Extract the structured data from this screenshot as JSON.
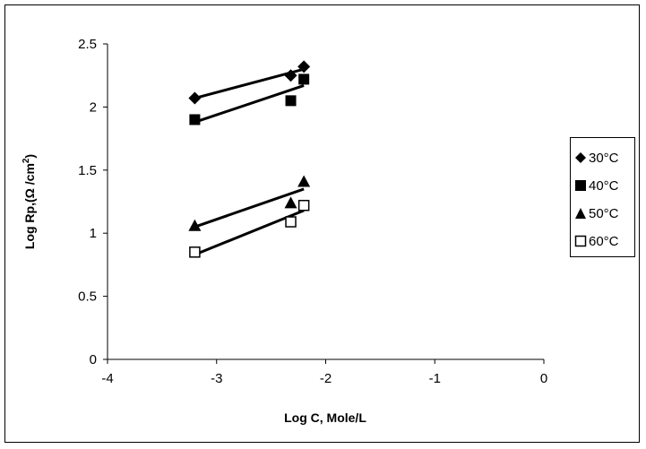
{
  "chart_data": {
    "type": "scatter",
    "title": "",
    "xlabel": "Log C, Mole/L",
    "ylabel_main": "Log Rp,(Ω /cm",
    "ylabel_sup": "2",
    "ylabel_end": ")",
    "xlim": [
      -4,
      0
    ],
    "ylim": [
      0,
      2.5
    ],
    "x_ticks": [
      -4,
      -3,
      -2,
      -1,
      0
    ],
    "x_tick_labels": [
      "-4",
      "-3",
      "-2",
      "-1",
      "0"
    ],
    "y_ticks": [
      0,
      0.5,
      1,
      1.5,
      2,
      2.5
    ],
    "y_tick_labels": [
      "0",
      "0.5",
      "1",
      "1.5",
      "2",
      "2.5"
    ],
    "grid": false,
    "legend_position": "right",
    "series": [
      {
        "name": "30°C",
        "marker": "diamond",
        "color": "#000000",
        "x": [
          -3.2,
          -2.32,
          -2.2
        ],
        "y": [
          2.07,
          2.25,
          2.32
        ],
        "trendline": [
          [
            -3.2,
            2.07
          ],
          [
            -2.2,
            2.3
          ]
        ]
      },
      {
        "name": "40°C",
        "marker": "square-filled",
        "color": "#000000",
        "x": [
          -3.2,
          -2.32,
          -2.2
        ],
        "y": [
          1.9,
          2.05,
          2.22
        ],
        "trendline": [
          [
            -3.2,
            1.88
          ],
          [
            -2.2,
            2.17
          ]
        ]
      },
      {
        "name": "50°C",
        "marker": "triangle",
        "color": "#000000",
        "x": [
          -3.2,
          -2.32,
          -2.2
        ],
        "y": [
          1.06,
          1.24,
          1.41
        ],
        "trendline": [
          [
            -3.2,
            1.05
          ],
          [
            -2.2,
            1.35
          ]
        ]
      },
      {
        "name": "60°C",
        "marker": "square-open",
        "color": "#000000",
        "x": [
          -3.2,
          -2.32,
          -2.2
        ],
        "y": [
          0.85,
          1.09,
          1.22
        ],
        "trendline": [
          [
            -3.2,
            0.83
          ],
          [
            -2.2,
            1.18
          ]
        ]
      }
    ]
  }
}
